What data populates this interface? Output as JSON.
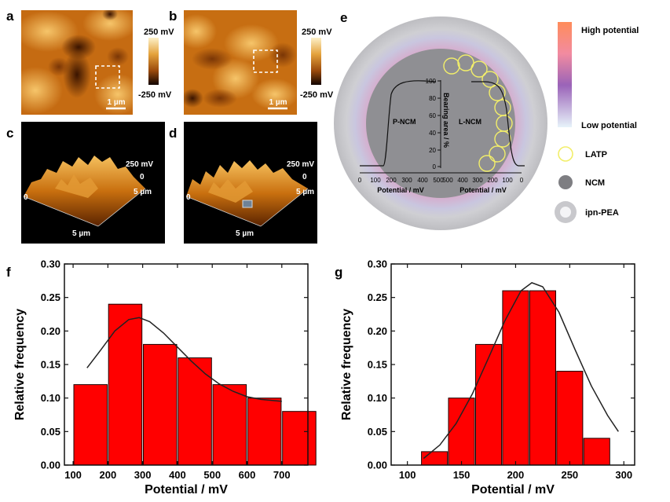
{
  "figure": {
    "panel_letters": [
      "a",
      "b",
      "c",
      "d",
      "e",
      "f",
      "g"
    ],
    "colors": {
      "bar_fill": "#ff0000",
      "bar_stroke": "#1a0000",
      "fit_line": "#222222",
      "afm_dark": "#3a1400",
      "afm_mid": "#c96a0e",
      "afm_light": "#f3bd5e",
      "ring_outer": "#c9c9cc",
      "ring_mid": "#d8a9c9",
      "ring_inner": "#f4a08a",
      "core": "#8f8f93",
      "latp": "#f2ee6a",
      "legend_high": "#ff8c5a",
      "legend_mid": "#9a63b8",
      "legend_low": "#d7ecf6"
    }
  },
  "panel_a": {
    "scale_max": "250 mV",
    "scale_min": "-250 mV",
    "scale_bar_label": "1 µm"
  },
  "panel_b": {
    "scale_max": "250 mV",
    "scale_min": "-250 mV",
    "scale_bar_label": "1 µm"
  },
  "panel_c": {
    "z_label": "250 mV",
    "z_zero": "0",
    "axis_origin": "0",
    "y_label": "5 µm",
    "x_label": "5 µm"
  },
  "panel_d": {
    "z_label": "250 mV",
    "z_zero": "0",
    "axis_origin": "0",
    "y_label": "5 µm",
    "x_label": "5 µm"
  },
  "panel_e": {
    "label_left": "P-NCM",
    "label_right": "L-NCM",
    "axis_title": "Bearing area / %",
    "bearing_ticks": [
      "0",
      "20",
      "40",
      "60",
      "80",
      "100"
    ],
    "left_x_ticks": [
      "0",
      "100",
      "200",
      "300",
      "400",
      "500"
    ],
    "right_x_ticks": [
      "500",
      "400",
      "300",
      "200",
      "100",
      "0"
    ],
    "left_x_label": "Potential / mV",
    "right_x_label": "Potential / mV",
    "legend": {
      "high": "High potential",
      "low": "Low potential",
      "latp": "LATP",
      "ncm": "NCM",
      "ipn": "ipn-PEA"
    }
  },
  "chart_data": [
    {
      "panel": "f",
      "type": "bar",
      "title": "",
      "xlabel": "Potential / mV",
      "ylabel": "Relative frequency",
      "categories": [
        150,
        250,
        350,
        450,
        550,
        650,
        750
      ],
      "values": [
        0.12,
        0.24,
        0.18,
        0.16,
        0.12,
        0.1,
        0.08
      ],
      "bin_width": 100,
      "xlim": [
        75,
        775
      ],
      "ylim": [
        0,
        0.3
      ],
      "x_ticks": [
        "100",
        "200",
        "300",
        "400",
        "500",
        "600",
        "700"
      ],
      "y_ticks": [
        "0.00",
        "0.05",
        "0.10",
        "0.15",
        "0.20",
        "0.25",
        "0.30"
      ],
      "fit_curve": {
        "name": "fit",
        "x": [
          140,
          180,
          220,
          260,
          290,
          320,
          360,
          400,
          440,
          480,
          520,
          560,
          600,
          640,
          700
        ],
        "y": [
          0.145,
          0.172,
          0.2,
          0.217,
          0.22,
          0.214,
          0.197,
          0.176,
          0.155,
          0.136,
          0.121,
          0.11,
          0.102,
          0.098,
          0.095
        ]
      },
      "grid": false
    },
    {
      "panel": "g",
      "type": "bar",
      "title": "",
      "xlabel": "Potential / mV",
      "ylabel": "Relative frequency",
      "categories": [
        125,
        150,
        175,
        200,
        225,
        250,
        275
      ],
      "values": [
        0.02,
        0.1,
        0.18,
        0.26,
        0.26,
        0.14,
        0.04
      ],
      "bin_width": 25,
      "xlim": [
        85,
        310
      ],
      "ylim": [
        0,
        0.3
      ],
      "x_ticks": [
        "100",
        "150",
        "200",
        "250",
        "300"
      ],
      "y_ticks": [
        "0.00",
        "0.05",
        "0.10",
        "0.15",
        "0.20",
        "0.25",
        "0.30"
      ],
      "fit_curve": {
        "name": "fit",
        "x": [
          115,
          130,
          145,
          160,
          175,
          190,
          205,
          215,
          225,
          240,
          255,
          270,
          285,
          295
        ],
        "y": [
          0.01,
          0.03,
          0.062,
          0.106,
          0.16,
          0.215,
          0.26,
          0.272,
          0.266,
          0.228,
          0.172,
          0.118,
          0.074,
          0.05
        ]
      },
      "grid": false
    }
  ]
}
